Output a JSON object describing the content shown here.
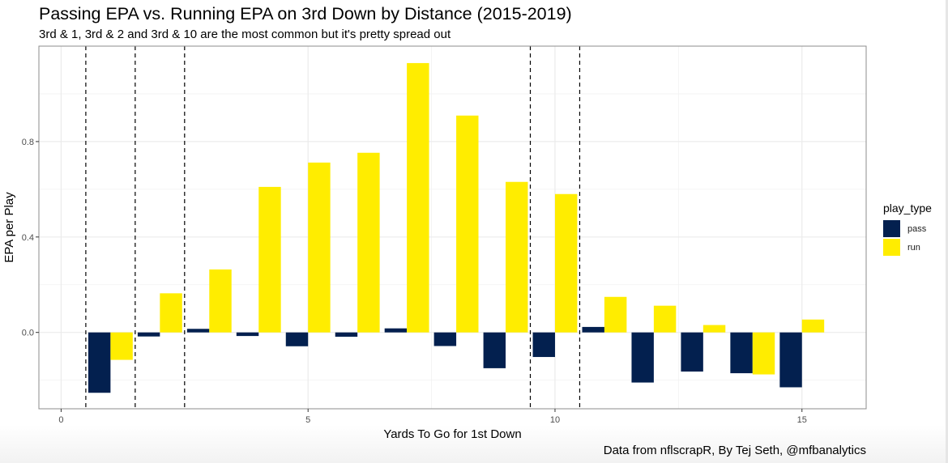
{
  "chart_data": {
    "type": "bar",
    "title": "Passing EPA vs. Running EPA on 3rd Down by Distance (2015-2019)",
    "subtitle": "3rd & 1, 3rd & 2 and 3rd & 10 are the most common but it's pretty spread out",
    "xlabel": "Yards To Go for 1st Down",
    "ylabel": "EPA per Play",
    "caption": "Data from nflscrapR, By Tej Seth, @mfbanalytics",
    "x": [
      1,
      2,
      3,
      4,
      5,
      6,
      7,
      8,
      9,
      10,
      11,
      12,
      13,
      14,
      15
    ],
    "series": [
      {
        "name": "pass",
        "color": "#03204f",
        "values": [
          -0.253,
          -0.017,
          0.015,
          -0.015,
          -0.058,
          -0.018,
          0.017,
          -0.057,
          -0.15,
          -0.103,
          0.023,
          -0.21,
          -0.164,
          -0.171,
          -0.23
        ]
      },
      {
        "name": "run",
        "color": "#ffed00",
        "values": [
          -0.115,
          0.164,
          0.264,
          0.61,
          0.712,
          0.753,
          1.129,
          0.909,
          0.631,
          0.58,
          0.149,
          0.112,
          0.031,
          -0.176,
          0.054
        ]
      }
    ],
    "xlim": [
      -0.45,
      16.3
    ],
    "ylim": [
      -0.32,
      1.2
    ],
    "xticks": [
      0,
      5,
      10,
      15
    ],
    "xtick_labels": [
      "0",
      "5",
      "10",
      "15"
    ],
    "yticks": [
      0.0,
      0.4,
      0.8
    ],
    "ytick_labels": [
      "0.0",
      "0.4",
      "0.8"
    ],
    "x_minor_gridlines": [
      2.5,
      7.5,
      12.5
    ],
    "y_minor_gridlines": [
      -0.2,
      0.2,
      0.6,
      1.0
    ],
    "vlines": [
      0.5,
      1.5,
      2.5,
      9.5,
      10.5
    ],
    "vline_style": "dashed",
    "bar_group_width": 0.9,
    "grid": true,
    "legend": {
      "title": "play_type",
      "position": "right",
      "entries": [
        "pass",
        "run"
      ]
    }
  }
}
